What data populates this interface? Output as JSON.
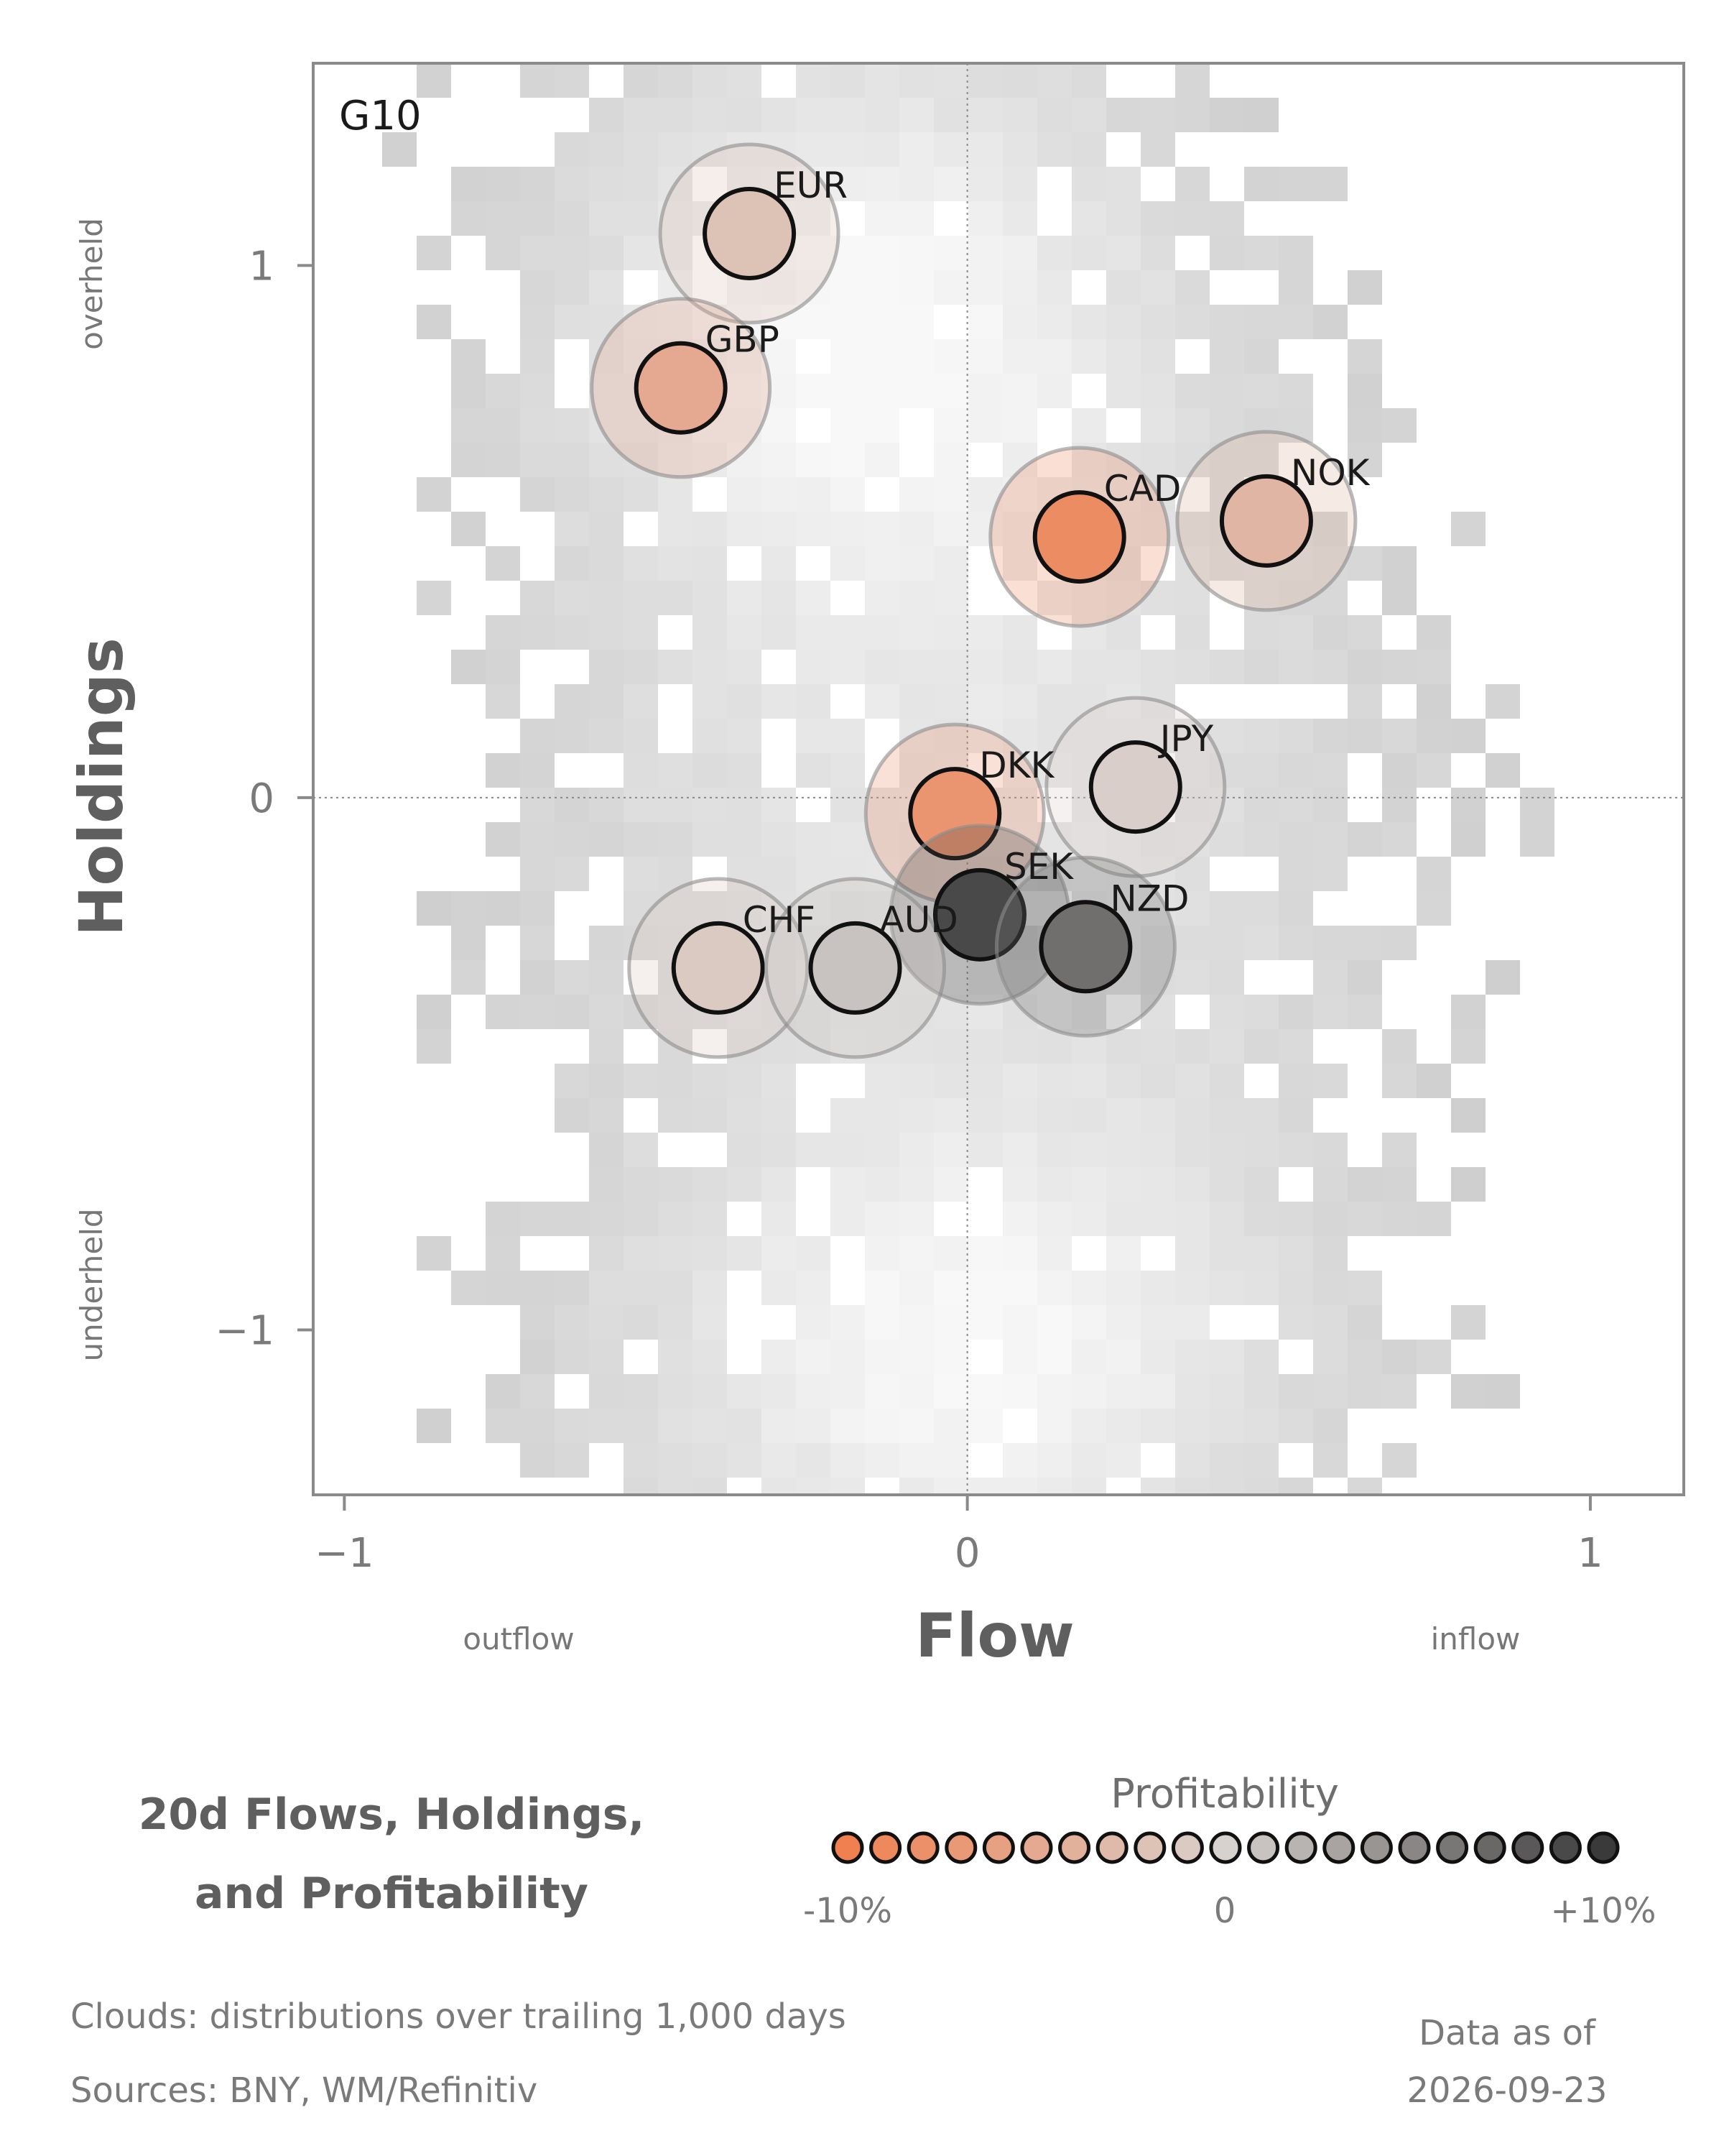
{
  "chart_data": {
    "type": "scatter",
    "panel_label": "G10",
    "xlabel": "Flow",
    "ylabel": "Holdings",
    "xlim": [
      -1.05,
      1.15
    ],
    "ylim": [
      -1.31,
      1.38
    ],
    "xticks": [
      -1,
      0,
      1
    ],
    "yticks": [
      1,
      0,
      -1
    ],
    "x_tick_labels": [
      "−1",
      "0",
      "1"
    ],
    "y_tick_labels": [
      "1",
      "0",
      "−1"
    ],
    "x_side_labels": {
      "left": "outflow",
      "right": "inflow"
    },
    "y_side_labels": {
      "top": "overheld",
      "bottom": "underheld"
    },
    "reference_lines": {
      "x": 0,
      "y": 0,
      "style": "dotted"
    },
    "background": "2D histogram clouds of historical flow/holdings (grayscale density)",
    "points": [
      {
        "label": "EUR",
        "x": -0.35,
        "y": 1.06,
        "profitability": -0.02
      },
      {
        "label": "GBP",
        "x": -0.46,
        "y": 0.77,
        "profitability": -0.05
      },
      {
        "label": "CAD",
        "x": 0.18,
        "y": 0.49,
        "profitability": -0.085
      },
      {
        "label": "NOK",
        "x": 0.48,
        "y": 0.52,
        "profitability": -0.035
      },
      {
        "label": "JPY",
        "x": 0.27,
        "y": 0.02,
        "profitability": -0.005
      },
      {
        "label": "DKK",
        "x": -0.02,
        "y": -0.03,
        "profitability": -0.075
      },
      {
        "label": "SEK",
        "x": 0.02,
        "y": -0.22,
        "profitability": 0.09
      },
      {
        "label": "NZD",
        "x": 0.19,
        "y": -0.28,
        "profitability": 0.065
      },
      {
        "label": "CHF",
        "x": -0.4,
        "y": -0.32,
        "profitability": -0.01
      },
      {
        "label": "AUD",
        "x": -0.18,
        "y": -0.32,
        "profitability": 0.01
      }
    ],
    "colorbar": {
      "title": "Profitability",
      "min": -0.1,
      "max": 0.1,
      "tick_labels": [
        "-10%",
        "0",
        "+10%"
      ],
      "low_color": "#f08050",
      "mid_color": "#d8d2cf",
      "high_color": "#3a3a3a",
      "swatch_count": 21
    }
  },
  "caption": {
    "title_line1": "20d Flows, Holdings,",
    "title_line2": "and Profitability"
  },
  "footnotes": {
    "clouds": "Clouds:  distributions over trailing 1,000 days",
    "sources": "Sources:  BNY, WM/Refinitiv",
    "asof_line1": "Data as of",
    "asof_line2": "2026-09-23"
  }
}
